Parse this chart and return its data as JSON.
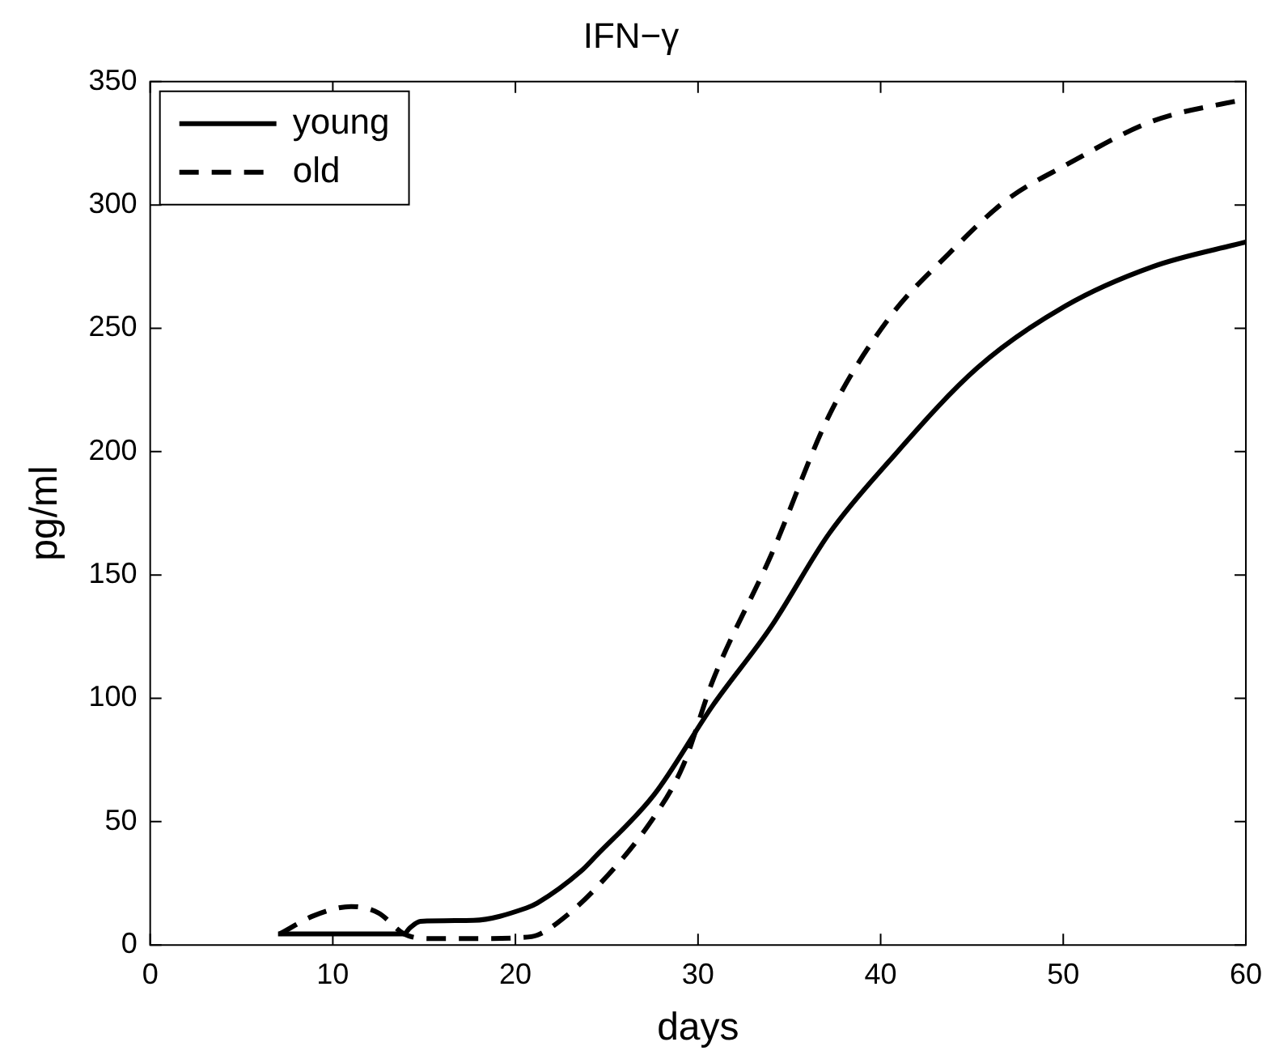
{
  "chart_data": {
    "type": "line",
    "title": "IFN−γ",
    "xlabel": "days",
    "ylabel": "pg/ml",
    "xlim": [
      0,
      60
    ],
    "xticks": [
      0,
      10,
      20,
      30,
      40,
      50,
      60
    ],
    "ylim": [
      0,
      350
    ],
    "yticks": [
      0,
      50,
      100,
      150,
      200,
      250,
      300,
      350
    ],
    "legend": "top left",
    "marker": "none",
    "grid": false,
    "series": [
      {
        "name": "young",
        "color": "#000000",
        "line_style": "solid",
        "x": [
          7,
          10,
          13.9,
          14.2,
          14.8,
          17.7,
          20.6,
          21.2,
          23.6,
          24.4,
          27.6,
          30.8,
          34,
          37.2,
          40.45,
          45.3,
          50.1,
          54.9,
          60
        ],
        "values": [
          4.5,
          4.5,
          4.5,
          6.8,
          9.6,
          10,
          15,
          17,
          30,
          36,
          61,
          97,
          129,
          167,
          196,
          234,
          259,
          275,
          285
        ]
      },
      {
        "name": "old",
        "color": "#000000",
        "line_style": "dashed",
        "x": [
          7.1,
          9,
          11,
          12.5,
          13.9,
          15.3,
          18,
          20.3,
          21.2,
          22.3,
          24.4,
          27.6,
          29.2,
          30.8,
          34,
          37.2,
          40.45,
          43.7,
          46.9,
          50.1,
          54.9,
          60
        ],
        "values": [
          4.5,
          12,
          15.6,
          13,
          4.5,
          2.6,
          2.6,
          3,
          4,
          9,
          23,
          52,
          73,
          107,
          158,
          215,
          254,
          280,
          302,
          316,
          334,
          343
        ]
      }
    ]
  }
}
